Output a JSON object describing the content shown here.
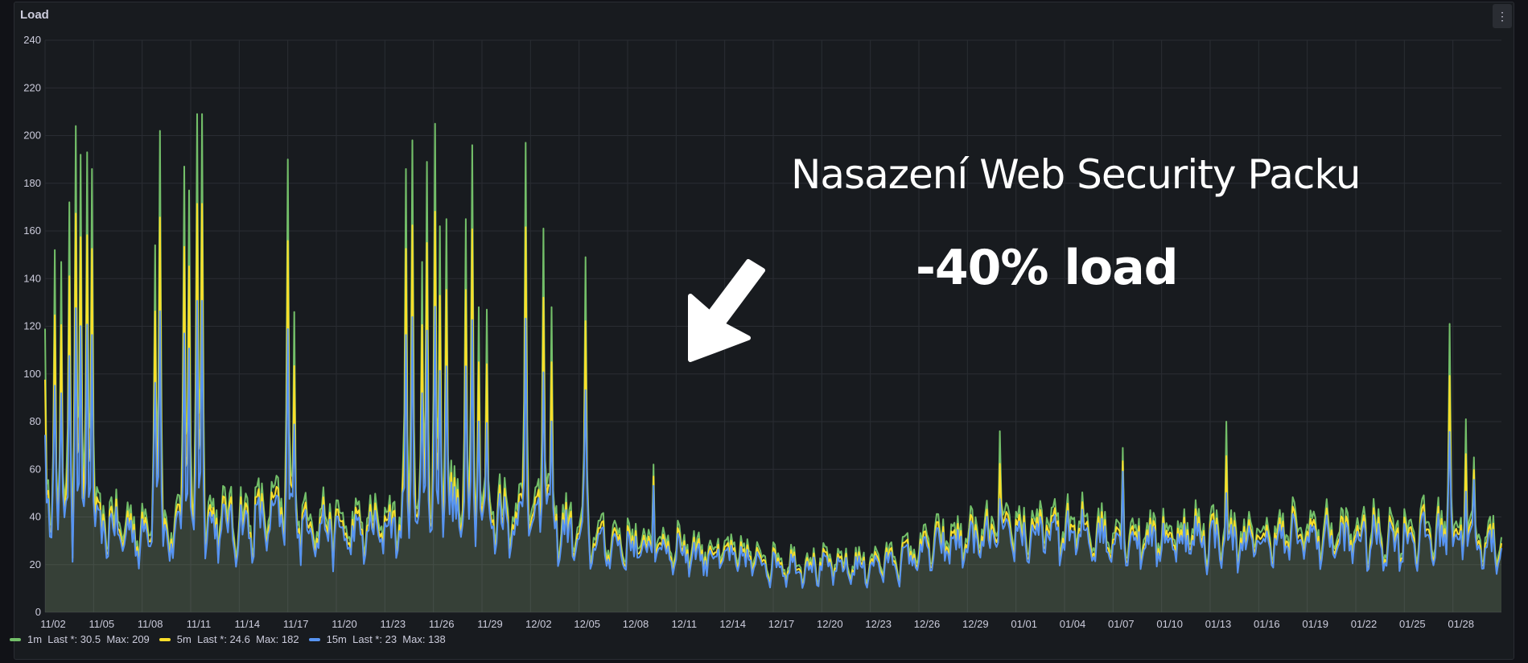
{
  "panel": {
    "title": "Load",
    "menu_icon": "more-vertical-icon"
  },
  "annotation": {
    "title": "Nasazení Web Security Packu",
    "subtitle": "-40% load",
    "arrow_icon": "arrow-down-left-icon"
  },
  "colors": {
    "s1m": "#73bf69",
    "s5m": "#fade2a",
    "s15m": "#5794f2",
    "grid": "#2a2d33",
    "background": "#181b1f"
  },
  "chart_data": {
    "type": "line",
    "ylim": [
      0,
      240
    ],
    "yticks": [
      0,
      20,
      40,
      60,
      80,
      100,
      120,
      140,
      160,
      180,
      200,
      220,
      240
    ],
    "xticks": [
      "11/02",
      "11/05",
      "11/08",
      "11/11",
      "11/14",
      "11/17",
      "11/20",
      "11/23",
      "11/26",
      "11/29",
      "12/02",
      "12/05",
      "12/08",
      "12/11",
      "12/14",
      "12/17",
      "12/20",
      "12/23",
      "12/26",
      "12/29",
      "01/01",
      "01/04",
      "01/07",
      "01/10",
      "01/13",
      "01/16",
      "01/19",
      "01/22",
      "01/25",
      "01/28"
    ],
    "x_days": [
      0,
      90
    ],
    "profile_1m": [
      [
        0,
        40
      ],
      [
        1,
        45
      ],
      [
        2,
        42
      ],
      [
        3,
        38
      ],
      [
        4,
        40
      ],
      [
        5,
        38
      ],
      [
        6,
        36
      ],
      [
        7,
        35
      ],
      [
        8,
        37
      ],
      [
        9,
        38
      ],
      [
        10,
        40
      ],
      [
        11,
        42
      ],
      [
        12,
        40
      ],
      [
        13,
        42
      ],
      [
        14,
        44
      ],
      [
        15,
        45
      ],
      [
        16,
        42
      ],
      [
        17,
        40
      ],
      [
        18,
        38
      ],
      [
        19,
        36
      ],
      [
        20,
        38
      ],
      [
        21,
        40
      ],
      [
        22,
        42
      ],
      [
        23,
        44
      ],
      [
        24,
        48
      ],
      [
        25,
        48
      ],
      [
        26,
        45
      ],
      [
        27,
        44
      ],
      [
        28,
        46
      ],
      [
        29,
        44
      ],
      [
        30,
        45
      ],
      [
        31,
        42
      ],
      [
        32,
        38
      ],
      [
        33,
        35
      ],
      [
        34,
        33
      ],
      [
        35,
        32
      ],
      [
        36,
        31
      ],
      [
        37,
        30
      ],
      [
        38,
        30
      ],
      [
        39,
        30
      ],
      [
        40,
        28
      ],
      [
        41,
        27
      ],
      [
        42,
        26
      ],
      [
        43,
        25
      ],
      [
        44,
        24
      ],
      [
        45,
        23
      ],
      [
        46,
        22
      ],
      [
        47,
        22
      ],
      [
        48,
        21
      ],
      [
        49,
        21
      ],
      [
        50,
        21
      ],
      [
        51,
        22
      ],
      [
        52,
        23
      ],
      [
        53,
        25
      ],
      [
        54,
        28
      ],
      [
        55,
        30
      ],
      [
        56,
        32
      ],
      [
        57,
        33
      ],
      [
        58,
        34
      ],
      [
        59,
        35
      ],
      [
        60,
        36
      ],
      [
        61,
        37
      ],
      [
        62,
        37
      ],
      [
        63,
        36
      ],
      [
        64,
        37
      ],
      [
        65,
        36
      ],
      [
        66,
        35
      ],
      [
        67,
        34
      ],
      [
        68,
        34
      ],
      [
        69,
        34
      ],
      [
        70,
        35
      ],
      [
        71,
        35
      ],
      [
        72,
        35
      ],
      [
        73,
        34
      ],
      [
        74,
        33
      ],
      [
        75,
        33
      ],
      [
        76,
        34
      ],
      [
        77,
        35
      ],
      [
        78,
        36
      ],
      [
        79,
        35
      ],
      [
        80,
        34
      ],
      [
        81,
        35
      ],
      [
        82,
        34
      ],
      [
        83,
        34
      ],
      [
        84,
        35
      ],
      [
        85,
        36
      ],
      [
        86,
        35
      ],
      [
        87,
        34
      ],
      [
        88,
        33
      ],
      [
        89,
        32
      ],
      [
        90,
        31
      ]
    ],
    "spikes_1m": [
      [
        0.05,
        119
      ],
      [
        0.55,
        152
      ],
      [
        1.0,
        147
      ],
      [
        1.5,
        172
      ],
      [
        1.9,
        204
      ],
      [
        2.2,
        192
      ],
      [
        2.6,
        193
      ],
      [
        2.9,
        186
      ],
      [
        6.8,
        154
      ],
      [
        7.1,
        202
      ],
      [
        8.6,
        187
      ],
      [
        8.9,
        177
      ],
      [
        9.4,
        209
      ],
      [
        9.7,
        209
      ],
      [
        15.0,
        190
      ],
      [
        15.4,
        126
      ],
      [
        22.3,
        186
      ],
      [
        22.7,
        198
      ],
      [
        23.3,
        147
      ],
      [
        23.6,
        189
      ],
      [
        24.1,
        205
      ],
      [
        24.4,
        162
      ],
      [
        24.8,
        165
      ],
      [
        26.0,
        165
      ],
      [
        26.4,
        196
      ],
      [
        26.8,
        128
      ],
      [
        27.3,
        127
      ],
      [
        29.7,
        197
      ],
      [
        30.8,
        161
      ],
      [
        31.3,
        128
      ],
      [
        33.4,
        149
      ],
      [
        37.6,
        62
      ],
      [
        59.0,
        76
      ],
      [
        66.6,
        69
      ],
      [
        73.0,
        80
      ],
      [
        87.8,
        81
      ],
      [
        86.8,
        121
      ],
      [
        88.3,
        65
      ]
    ],
    "series": [
      {
        "name": "1m",
        "last": "Last *: 30.5",
        "max": "Max: 209",
        "ratio": 1.0
      },
      {
        "name": "5m",
        "last": "Last *: 24.6",
        "max": "Max: 182",
        "ratio": 0.82
      },
      {
        "name": "15m",
        "last": "Last *: 23",
        "max": "Max: 138",
        "ratio": 0.68
      }
    ]
  }
}
